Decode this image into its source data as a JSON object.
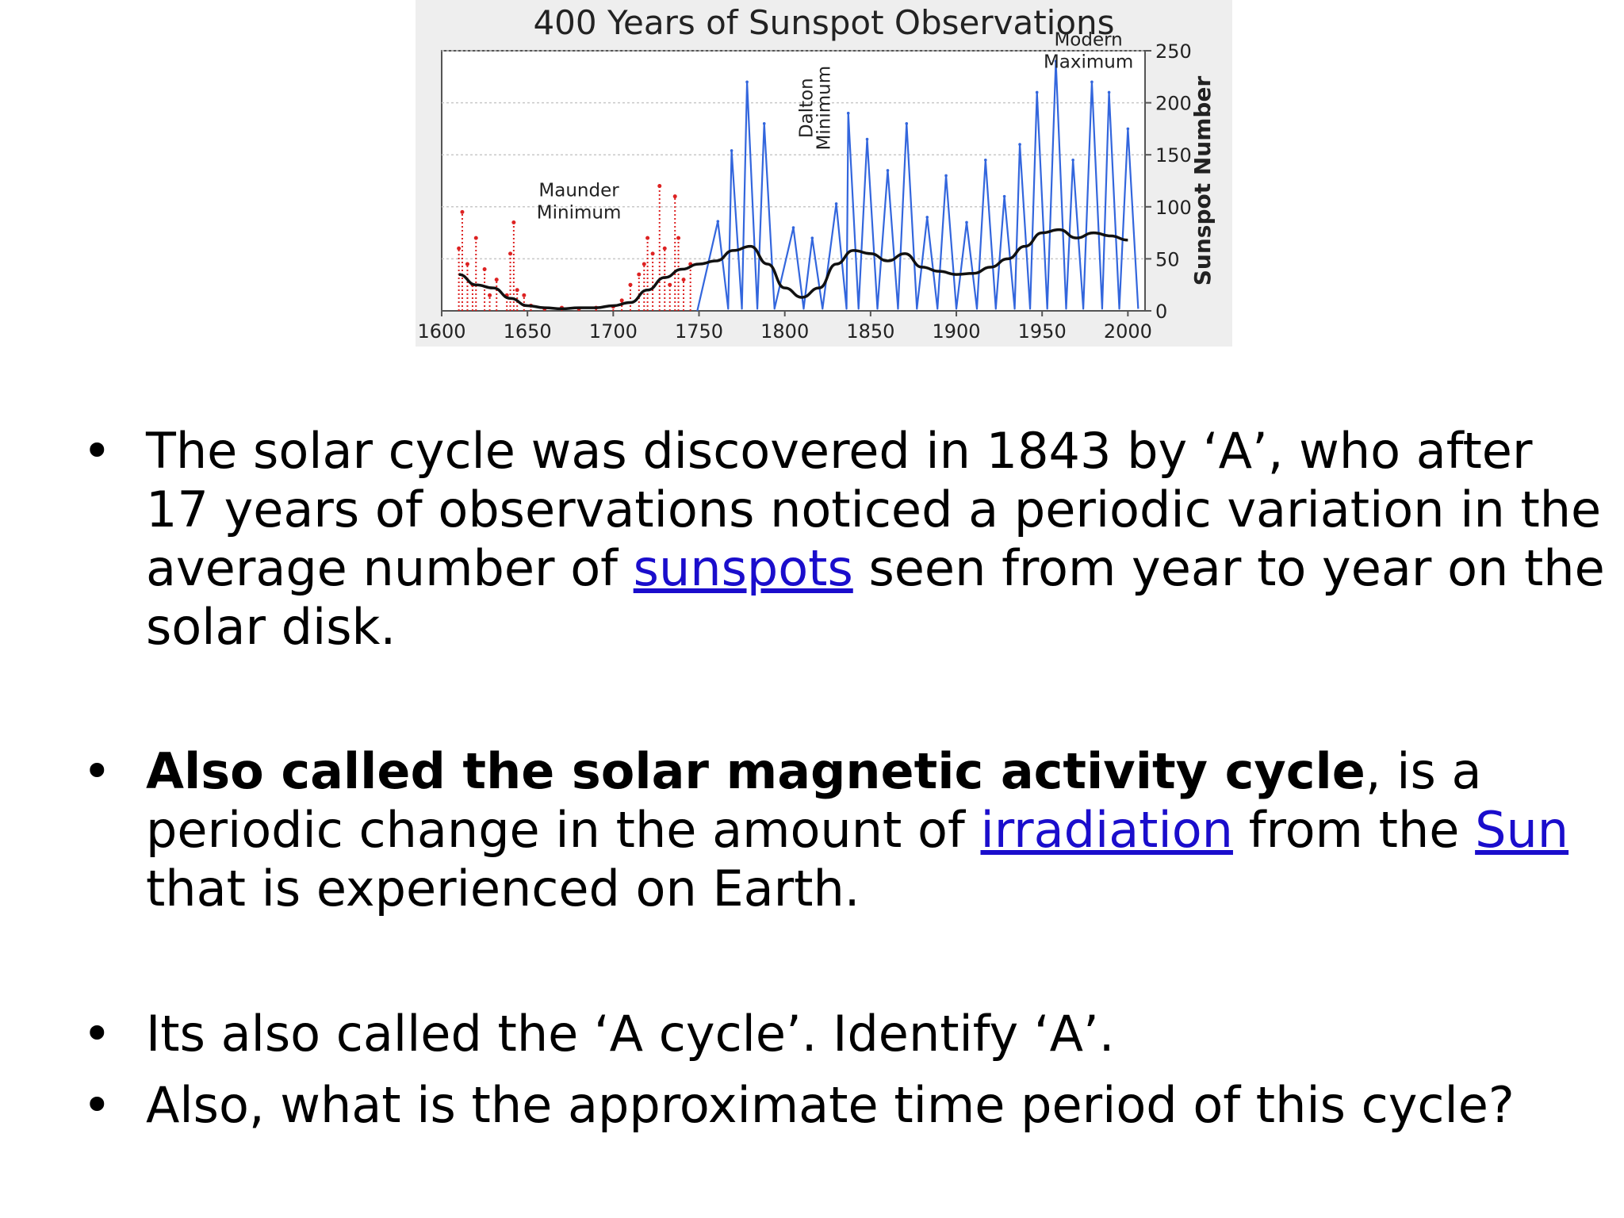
{
  "chart_data": {
    "type": "line",
    "title": "400 Years of Sunspot Observations",
    "xlabel": "",
    "ylabel": "Sunspot Number",
    "xlim": [
      1600,
      2010
    ],
    "ylim": [
      0,
      250
    ],
    "x_ticks": [
      1600,
      1650,
      1700,
      1750,
      1800,
      1850,
      1900,
      1950,
      2000
    ],
    "y_ticks": [
      0,
      50,
      100,
      150,
      200,
      250
    ],
    "y_axis_side": "right",
    "grid": true,
    "annotations": [
      {
        "lines": [
          "Maunder",
          "Minimum"
        ],
        "x": 1680,
        "y": 110
      },
      {
        "lines": [
          "Dalton",
          "Minimum"
        ],
        "x": 1816,
        "y": 195,
        "rotated": true
      },
      {
        "lines": [
          "Modern",
          "Maximum"
        ],
        "x": 1977,
        "y": 255
      }
    ],
    "series": [
      {
        "style": "smoothed",
        "color": "#111111",
        "points": [
          [
            1610,
            35
          ],
          [
            1620,
            25
          ],
          [
            1630,
            22
          ],
          [
            1640,
            12
          ],
          [
            1650,
            5
          ],
          [
            1660,
            3
          ],
          [
            1670,
            2
          ],
          [
            1680,
            3
          ],
          [
            1690,
            3
          ],
          [
            1700,
            5
          ],
          [
            1710,
            8
          ],
          [
            1720,
            20
          ],
          [
            1730,
            32
          ],
          [
            1740,
            40
          ],
          [
            1750,
            45
          ],
          [
            1760,
            48
          ],
          [
            1770,
            58
          ],
          [
            1780,
            62
          ],
          [
            1790,
            45
          ],
          [
            1800,
            22
          ],
          [
            1810,
            13
          ],
          [
            1820,
            22
          ],
          [
            1830,
            45
          ],
          [
            1840,
            58
          ],
          [
            1850,
            55
          ],
          [
            1860,
            48
          ],
          [
            1870,
            55
          ],
          [
            1880,
            42
          ],
          [
            1890,
            38
          ],
          [
            1900,
            35
          ],
          [
            1910,
            36
          ],
          [
            1920,
            42
          ],
          [
            1930,
            50
          ],
          [
            1940,
            62
          ],
          [
            1950,
            75
          ],
          [
            1960,
            78
          ],
          [
            1970,
            70
          ],
          [
            1980,
            75
          ],
          [
            1990,
            72
          ],
          [
            2000,
            68
          ]
        ]
      },
      {
        "style": "yearly-cycles",
        "color": "#3366dd",
        "peaks": [
          [
            1761,
            86
          ],
          [
            1769,
            154
          ],
          [
            1778,
            220
          ],
          [
            1788,
            180
          ],
          [
            1805,
            80
          ],
          [
            1816,
            70
          ],
          [
            1830,
            103
          ],
          [
            1837,
            190
          ],
          [
            1848,
            165
          ],
          [
            1860,
            135
          ],
          [
            1871,
            180
          ],
          [
            1883,
            90
          ],
          [
            1894,
            130
          ],
          [
            1906,
            85
          ],
          [
            1917,
            145
          ],
          [
            1928,
            110
          ],
          [
            1937,
            160
          ],
          [
            1947,
            210
          ],
          [
            1958,
            240
          ],
          [
            1968,
            145
          ],
          [
            1979,
            220
          ],
          [
            1989,
            210
          ],
          [
            2000,
            175
          ]
        ]
      },
      {
        "style": "early-observations",
        "color": "#dd2222",
        "points": [
          [
            1610,
            60
          ],
          [
            1612,
            95
          ],
          [
            1615,
            45
          ],
          [
            1618,
            25
          ],
          [
            1620,
            70
          ],
          [
            1625,
            40
          ],
          [
            1628,
            15
          ],
          [
            1632,
            30
          ],
          [
            1638,
            15
          ],
          [
            1640,
            55
          ],
          [
            1642,
            85
          ],
          [
            1644,
            20
          ],
          [
            1648,
            15
          ],
          [
            1652,
            5
          ],
          [
            1660,
            2
          ],
          [
            1670,
            3
          ],
          [
            1680,
            2
          ],
          [
            1690,
            3
          ],
          [
            1700,
            4
          ],
          [
            1705,
            10
          ],
          [
            1710,
            25
          ],
          [
            1715,
            35
          ],
          [
            1718,
            45
          ],
          [
            1720,
            70
          ],
          [
            1723,
            55
          ],
          [
            1727,
            120
          ],
          [
            1730,
            60
          ],
          [
            1733,
            25
          ],
          [
            1736,
            110
          ],
          [
            1738,
            70
          ],
          [
            1741,
            30
          ],
          [
            1745,
            45
          ]
        ]
      }
    ]
  },
  "bullets": [
    {
      "parts": [
        {
          "type": "text",
          "value": "The solar cycle was discovered in 1843 by ‘A’, who after 17 years of observations noticed a periodic variation in the average number of "
        },
        {
          "type": "link",
          "value": "sunspots"
        },
        {
          "type": "text",
          "value": " seen from year to year on the solar disk."
        }
      ]
    },
    {
      "parts": [
        {
          "type": "bold",
          "value": "Also called the solar magnetic activity cycle"
        },
        {
          "type": "text",
          "value": ", is a periodic change in the amount of "
        },
        {
          "type": "link",
          "value": "irradiation"
        },
        {
          "type": "text",
          "value": " from the "
        },
        {
          "type": "link",
          "value": "Sun"
        },
        {
          "type": "text",
          "value": " that is experienced on Earth."
        }
      ]
    },
    {
      "parts": [
        {
          "type": "text",
          "value": "Its also called the ‘A cycle’. Identify ‘A’."
        }
      ]
    },
    {
      "parts": [
        {
          "type": "text",
          "value": "Also, what is the approximate time period of this cycle?"
        }
      ]
    }
  ]
}
